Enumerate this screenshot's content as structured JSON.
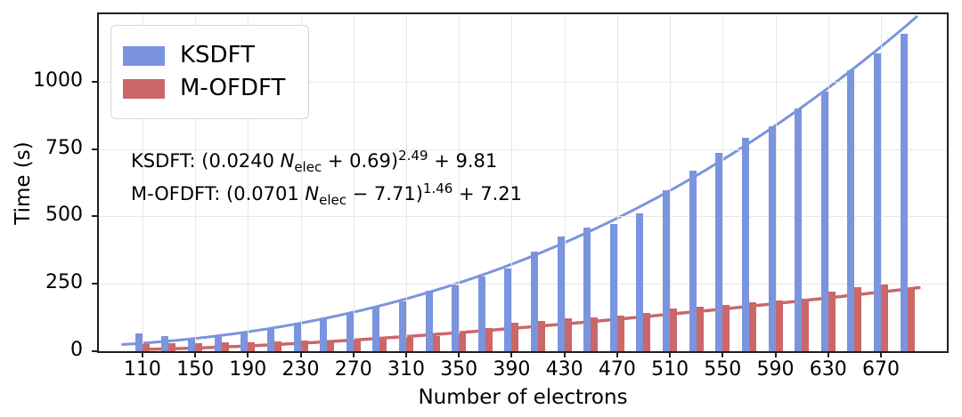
{
  "chart_data": {
    "type": "bar",
    "title": "",
    "xlabel": "Number of electrons",
    "ylabel": "Time (s)",
    "grid": true,
    "legend_position": "upper left",
    "xlim": [
      77,
      720
    ],
    "ylim": [
      0,
      1250
    ],
    "xticks": [
      110,
      150,
      190,
      230,
      270,
      310,
      350,
      390,
      430,
      470,
      510,
      550,
      590,
      630,
      670
    ],
    "yticks": [
      0,
      250,
      500,
      750,
      1000
    ],
    "categories": [
      110,
      130,
      150,
      170,
      190,
      210,
      230,
      250,
      270,
      290,
      310,
      330,
      350,
      370,
      390,
      410,
      430,
      450,
      470,
      490,
      510,
      530,
      550,
      570,
      590,
      610,
      630,
      650,
      670,
      690
    ],
    "series": [
      {
        "name": "KSDFT",
        "color": "#7a94de",
        "values": [
          65,
          55,
          50,
          52,
          70,
          86,
          103,
          121,
          142,
          165,
          186,
          223,
          243,
          276,
          306,
          368,
          425,
          458,
          472,
          512,
          597,
          668,
          737,
          792,
          833,
          902,
          963,
          1043,
          1105,
          1178
        ]
      },
      {
        "name": "M-OFDFT",
        "color": "#cb6769",
        "values": [
          28,
          29,
          30,
          32,
          33,
          36,
          38,
          41,
          44,
          47,
          50,
          56,
          65,
          85,
          105,
          113,
          121,
          126,
          131,
          143,
          157,
          165,
          172,
          180,
          188,
          196,
          222,
          238,
          248,
          233
        ]
      }
    ],
    "fit_curves": [
      {
        "name": "KSDFT",
        "color": "#7a94de",
        "formula": "(0.0240 N_elec + 0.69)^2.49 + 9.81",
        "coeffs": {
          "a": 0.024,
          "b": 0.69,
          "p": 2.49,
          "c": 9.81
        },
        "n_range": [
          95,
          697
        ]
      },
      {
        "name": "M-OFDFT",
        "color": "#cb6769",
        "formula": "(0.0701 N_elec - 7.71)^1.46 + 7.21",
        "coeffs": {
          "a": 0.0701,
          "b": -7.71,
          "p": 1.46,
          "c": 7.21
        },
        "n_range": [
          111,
          700
        ]
      }
    ]
  },
  "equations": {
    "line1": {
      "prefix": "KSDFT: (0.0240 ",
      "var": "N",
      "sub": "elec",
      "mid": " + 0.69)",
      "sup": "2.49",
      "suffix": " + 9.81"
    },
    "line2": {
      "prefix": "M-OFDFT: (0.0701 ",
      "var": "N",
      "sub": "elec",
      "mid": " − 7.71)",
      "sup": "1.46",
      "suffix": " + 7.21"
    }
  }
}
